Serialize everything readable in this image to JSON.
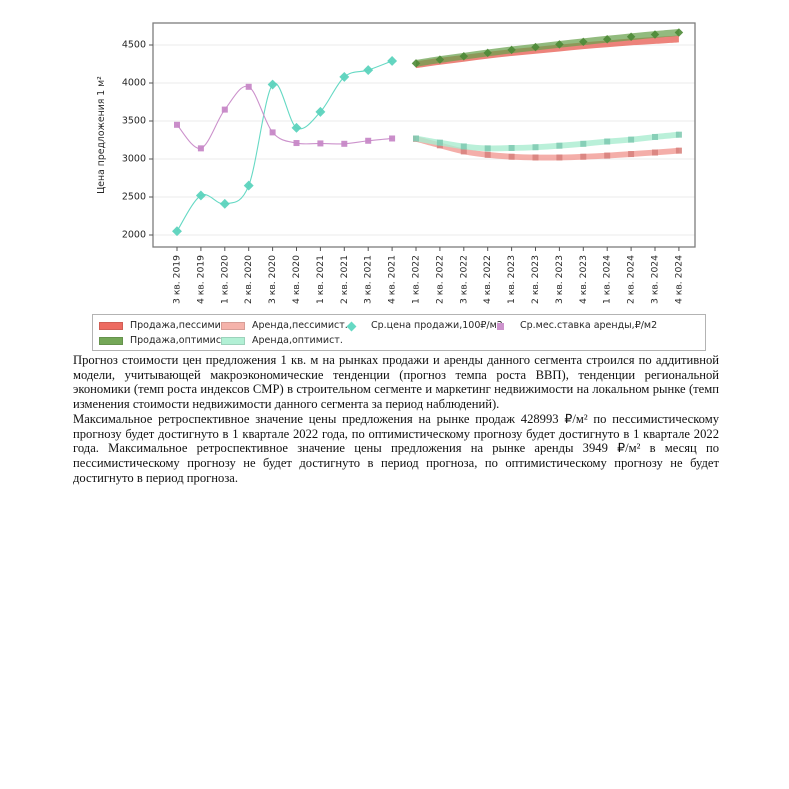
{
  "chart_data": {
    "type": "line",
    "title": "",
    "ylabel": "Цена предложения 1 м²",
    "ylim": [
      1840,
      4790
    ],
    "yticks": [
      2000,
      2500,
      3000,
      3500,
      4000,
      4500
    ],
    "grid": "horizontal",
    "x": [
      "3 кв. 2019",
      "4 кв. 2019",
      "1 кв. 2020",
      "2 кв. 2020",
      "3 кв. 2020",
      "4 кв. 2020",
      "1 кв. 2021",
      "2 кв. 2021",
      "3 кв. 2021",
      "4 кв. 2021",
      "1 кв. 2022",
      "2 кв. 2022",
      "3 кв. 2022",
      "4 кв. 2022",
      "1 кв. 2023",
      "2 кв. 2023",
      "3 кв. 2023",
      "4 кв. 2023",
      "1 кв. 2024",
      "2 кв. 2024",
      "3 кв. 2024",
      "4 кв. 2024"
    ],
    "series": [
      {
        "name": "Продажа,пессимист.",
        "kind": "band",
        "start": 10,
        "center": [
          4240,
          4285,
          4325,
          4365,
          4400,
          4430,
          4460,
          4490,
          4515,
          4540,
          4560,
          4580
        ],
        "half": 45,
        "fill": "#e8645a",
        "opacity": 0.8
      },
      {
        "name": "Продажа,оптимист.",
        "kind": "band",
        "start": 10,
        "center": [
          4258,
          4308,
          4352,
          4396,
          4436,
          4472,
          4508,
          4542,
          4576,
          4608,
          4638,
          4665
        ],
        "half": 45,
        "fill": "#68a14c",
        "opacity": 0.72,
        "marker": "diamond",
        "marker_color": "#4c8a36",
        "marker_size": 6
      },
      {
        "name": "Аренда,пессимист.",
        "kind": "band",
        "start": 10,
        "center": [
          3265,
          3180,
          3100,
          3055,
          3030,
          3020,
          3020,
          3030,
          3045,
          3065,
          3085,
          3110
        ],
        "half": 38,
        "fill": "#f2a09a",
        "opacity": 0.85,
        "marker": "square",
        "marker_color": "#d8837e",
        "marker_size": 6
      },
      {
        "name": "Аренда,оптимист.",
        "kind": "band",
        "start": 10,
        "center": [
          3270,
          3215,
          3165,
          3140,
          3145,
          3155,
          3175,
          3200,
          3230,
          3255,
          3290,
          3320
        ],
        "half": 38,
        "fill": "#a9ecd0",
        "opacity": 0.8,
        "marker": "square",
        "marker_color": "#82cbb2",
        "marker_size": 6
      },
      {
        "name": "Ср.цена продажи,100₽/м2",
        "kind": "line",
        "start": 0,
        "values": [
          2050,
          2520,
          2410,
          2650,
          3980,
          3410,
          3620,
          4080,
          4170,
          4290
        ],
        "color": "#66d9c4",
        "marker": "diamond",
        "marker_color": "#5cd3bd",
        "marker_size": 7
      },
      {
        "name": "Ср.мес.ставка аренды,₽/м2",
        "kind": "line",
        "start": 0,
        "values": [
          3450,
          3140,
          3650,
          3950,
          3350,
          3210,
          3205,
          3200,
          3240,
          3270
        ],
        "color": "#cc92cc",
        "marker": "square",
        "marker_color": "#c788c7",
        "marker_size": 6
      }
    ]
  },
  "legend": {
    "items": [
      {
        "label": "Продажа,пессимист.",
        "swatch": "rect",
        "color": "#ed6b61"
      },
      {
        "label": "Аренда,пессимист.",
        "swatch": "rect",
        "color": "#f5b3ab"
      },
      {
        "label": "Ср.цена продажи,100₽/м2",
        "swatch": "diamond",
        "color": "#66d9c4"
      },
      {
        "label": "Ср.мес.ставка аренды,₽/м2",
        "swatch": "square",
        "color": "#cc92cc"
      },
      {
        "label": "Продажа,оптимист.",
        "swatch": "rect",
        "color": "#74a757"
      },
      {
        "label": "Аренда,оптимист.",
        "swatch": "rect",
        "color": "#b2f0d5"
      }
    ]
  },
  "document": {
    "paragraphs": [
      "Прогноз стоимости цен предложения 1 кв. м на рынках продажи и аренды данного сегмента строился по аддитивной модели, учитывающей макроэкономические тенденции (прогноз темпа роста ВВП), тенденции региональной экономики (темп роста индексов СМР) в строительном сегменте и маркетинг недвижимости на локальном рынке (темп изменения стоимости недвижимости данного сегмента за период наблюдений).",
      "Максимальное ретроспективное значение цены предложения на рынке продаж 428993 ₽/м² по пессимистическому прогнозу будет достигнуто в 1 квартале 2022 года, по оптимистическому прогнозу будет достигнуто в 1 квартале 2022 года. Максимальное ретроспективное значение цены предложения на рынке аренды 3949 ₽/м² в месяц по пессимистическому прогнозу не будет достигнуто в период прогноза, по оптимистическому прогнозу не будет достигнуто в период прогноза."
    ]
  },
  "colors": {
    "plot_border": "#7d7d7d",
    "gridline": "#ebebeb",
    "tick": "#555555",
    "tick_label": "#262626"
  }
}
